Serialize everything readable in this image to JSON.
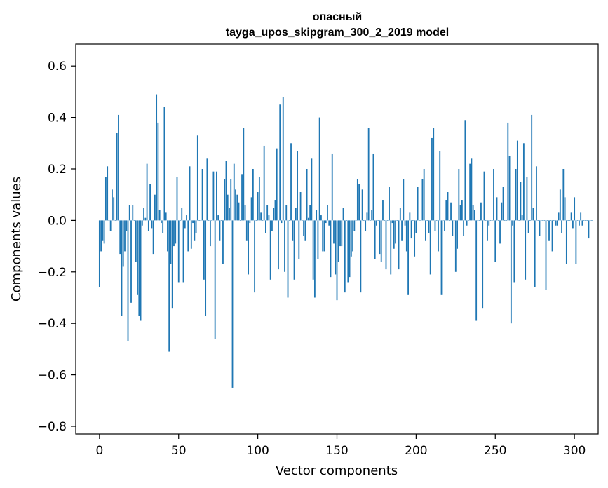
{
  "chart_data": {
    "type": "bar",
    "title": "опасный",
    "subtitle": "tayga_upos_skipgram_300_2_2019 model",
    "xlabel": "Vector components",
    "ylabel": "Components values",
    "xlim": [
      -15,
      315
    ],
    "ylim": [
      -0.83,
      0.685
    ],
    "xticks": [
      0,
      50,
      100,
      150,
      200,
      250,
      300
    ],
    "yticks": [
      0.6,
      0.4,
      0.2,
      0.0,
      -0.2,
      -0.4,
      -0.6,
      -0.8
    ],
    "xtick_labels": [
      "0",
      "50",
      "100",
      "150",
      "200",
      "250",
      "300"
    ],
    "ytick_labels": [
      "0.6",
      "0.4",
      "0.2",
      "0.0",
      "−0.2",
      "−0.4",
      "−0.6",
      "−0.8"
    ],
    "bar_color": "#1f77b4",
    "values": [
      -0.26,
      -0.12,
      -0.08,
      -0.09,
      0.17,
      0.21,
      0.0,
      -0.04,
      0.12,
      0.09,
      0.0,
      0.34,
      0.41,
      -0.13,
      -0.37,
      -0.18,
      -0.12,
      -0.04,
      -0.47,
      0.06,
      -0.32,
      0.06,
      0.0,
      -0.16,
      -0.29,
      -0.37,
      -0.39,
      -0.02,
      0.05,
      0.01,
      0.22,
      -0.04,
      0.14,
      -0.03,
      -0.13,
      0.1,
      0.49,
      0.38,
      0.04,
      -0.01,
      -0.05,
      0.44,
      0.03,
      -0.12,
      -0.51,
      -0.17,
      -0.34,
      -0.1,
      -0.09,
      0.17,
      -0.24,
      0.0,
      0.05,
      -0.24,
      -0.03,
      0.02,
      -0.12,
      0.21,
      -0.11,
      -0.01,
      -0.08,
      -0.05,
      0.33,
      0.0,
      0.0,
      0.2,
      -0.23,
      -0.37,
      0.24,
      0.0,
      -0.1,
      0.0,
      0.19,
      -0.46,
      0.19,
      0.02,
      -0.08,
      0.0,
      -0.17,
      0.16,
      0.23,
      0.1,
      0.05,
      0.16,
      -0.65,
      0.22,
      0.12,
      0.1,
      0.07,
      0.0,
      0.18,
      0.36,
      0.06,
      -0.08,
      -0.21,
      -0.01,
      0.09,
      0.2,
      -0.28,
      0.0,
      0.11,
      0.17,
      0.03,
      0.0,
      0.29,
      -0.05,
      0.06,
      0.02,
      -0.23,
      -0.04,
      0.05,
      0.08,
      0.28,
      -0.19,
      0.45,
      -0.01,
      0.48,
      -0.2,
      0.06,
      -0.3,
      0.0,
      0.3,
      -0.08,
      -0.23,
      0.05,
      0.27,
      -0.15,
      0.11,
      0.0,
      -0.06,
      -0.08,
      0.2,
      0.01,
      0.06,
      0.24,
      -0.23,
      -0.3,
      0.04,
      -0.15,
      0.4,
      0.02,
      -0.12,
      -0.12,
      -0.01,
      0.06,
      -0.02,
      -0.22,
      0.26,
      -0.09,
      -0.21,
      -0.31,
      -0.16,
      -0.1,
      -0.1,
      0.05,
      -0.28,
      0.0,
      -0.24,
      -0.22,
      -0.14,
      -0.12,
      -0.04,
      0.0,
      0.16,
      0.14,
      -0.28,
      0.12,
      0.0,
      -0.04,
      0.03,
      0.36,
      0.0,
      0.04,
      0.26,
      -0.15,
      -0.02,
      0.0,
      -0.13,
      -0.16,
      0.08,
      0.0,
      -0.19,
      0.0,
      0.13,
      -0.21,
      -0.01,
      -0.11,
      -0.09,
      0.0,
      -0.19,
      0.05,
      -0.08,
      0.16,
      -0.02,
      -0.12,
      -0.29,
      0.03,
      -0.07,
      0.0,
      -0.14,
      -0.05,
      0.13,
      0.0,
      0.0,
      0.16,
      0.2,
      -0.08,
      0.0,
      -0.05,
      -0.21,
      0.32,
      0.36,
      -0.04,
      0.0,
      -0.12,
      0.27,
      -0.29,
      0.0,
      -0.04,
      0.08,
      0.11,
      0.0,
      0.07,
      -0.06,
      0.0,
      -0.2,
      -0.11,
      0.2,
      0.06,
      0.08,
      -0.06,
      0.39,
      -0.02,
      0.0,
      0.22,
      0.24,
      0.06,
      0.04,
      -0.39,
      0.0,
      0.0,
      0.07,
      -0.34,
      0.19,
      0.0,
      -0.08,
      -0.02,
      0.0,
      0.0,
      0.2,
      -0.16,
      0.09,
      0.0,
      -0.09,
      0.07,
      0.13,
      0.0,
      0.0,
      0.38,
      0.25,
      -0.4,
      -0.02,
      -0.24,
      0.2,
      0.31,
      0.0,
      0.15,
      0.02,
      0.3,
      -0.23,
      0.17,
      -0.05,
      0.0,
      0.41,
      0.05,
      -0.26,
      0.21,
      0.0,
      -0.06,
      0.0,
      0.0,
      0.0,
      -0.27,
      0.0,
      -0.08,
      0.0,
      -0.12,
      0.0,
      -0.02,
      -0.02,
      0.03,
      0.12,
      -0.05,
      0.2,
      0.09,
      -0.17,
      0.0,
      0.0,
      0.03,
      -0.03,
      0.09,
      -0.17,
      0.0,
      -0.02,
      0.03,
      -0.02,
      0.0,
      0.0,
      0.0,
      -0.07,
      0.0,
      0.0
    ]
  }
}
